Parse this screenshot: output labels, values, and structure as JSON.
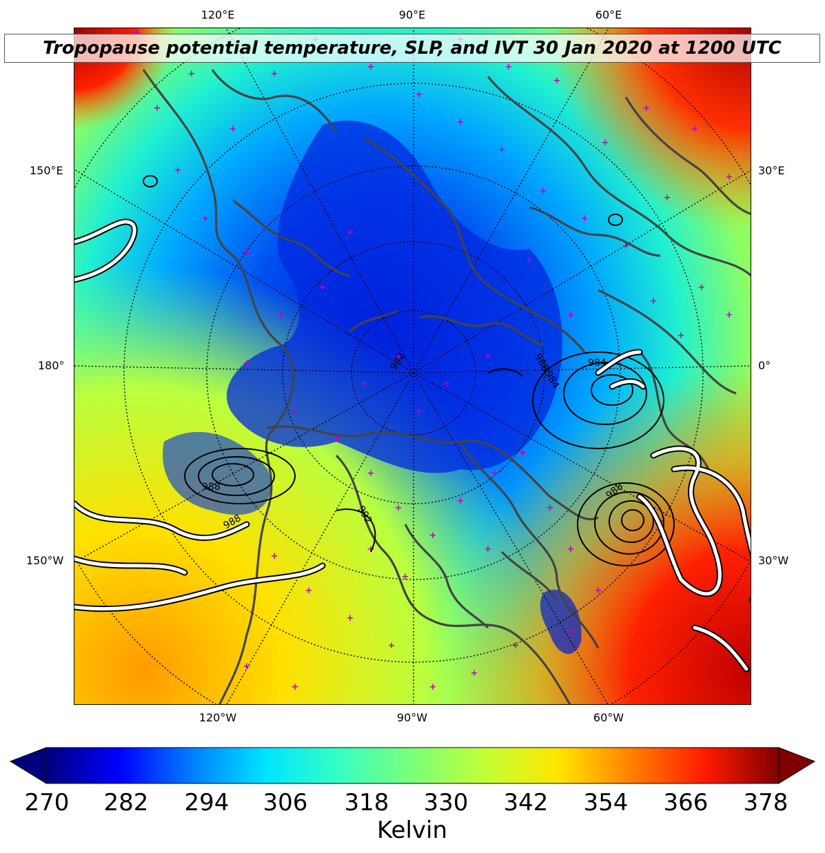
{
  "title": "Tropopause potential temperature, SLP, and IVT 30 Jan 2020 at 1200 UTC",
  "top_longitude_labels": [
    "120°E",
    "90°E",
    "60°E"
  ],
  "bottom_longitude_labels": [
    "120°W",
    "90°W",
    "60°W"
  ],
  "left_labels": [
    "150°E",
    "180°",
    "150°W"
  ],
  "right_labels": [
    "30°E",
    "0°",
    "30°W"
  ],
  "slp_contour_labels": [
    "992",
    "984",
    "988",
    "984",
    "988",
    "988",
    "988",
    "992"
  ],
  "colorbar": {
    "ticks": [
      "270",
      "282",
      "294",
      "306",
      "318",
      "330",
      "342",
      "354",
      "366",
      "378"
    ],
    "label": "Kelvin",
    "range": [
      270,
      378
    ],
    "colormap": [
      "#00007f",
      "#0000ff",
      "#007fff",
      "#00e5ff",
      "#36ffc3",
      "#7cff79",
      "#c3ff36",
      "#ffe500",
      "#ff7f00",
      "#ff1a00",
      "#7f0000"
    ]
  },
  "colors": {
    "coastline": "#444444",
    "station_marker": "#c000c0",
    "ivt_contour": "#ffffff",
    "slp_contour": "#000000"
  }
}
